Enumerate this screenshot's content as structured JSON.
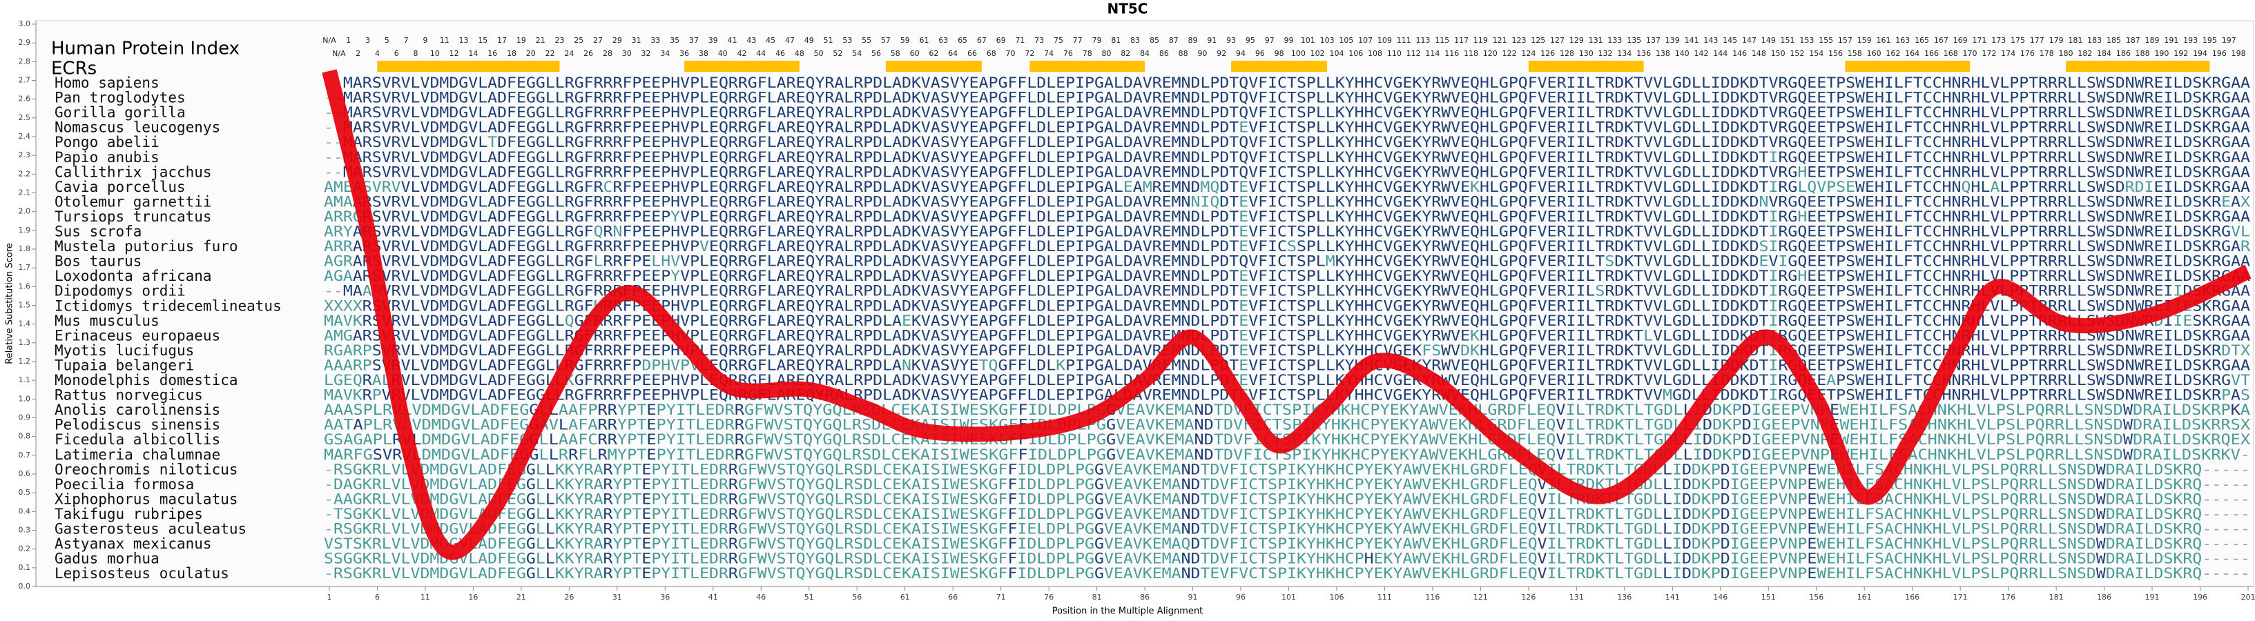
{
  "header": {
    "index_title": "Human Protein Index",
    "ecr_title": "ECRs"
  },
  "human_index": {
    "odd": [
      "N/A",
      1,
      3,
      5,
      7,
      9,
      11,
      13,
      15,
      17,
      19,
      21,
      23,
      25,
      27,
      29,
      31,
      33,
      35,
      37,
      39,
      41,
      43,
      45,
      47,
      49,
      51,
      53,
      55,
      57,
      59,
      61,
      63,
      65,
      67,
      69,
      71,
      73,
      75,
      77,
      79,
      81,
      83,
      85,
      87,
      89,
      91,
      93,
      95,
      97,
      99,
      101,
      103,
      105,
      107,
      109,
      111,
      113,
      115,
      117,
      119,
      121,
      123,
      125,
      127,
      129,
      131,
      133,
      135,
      137,
      139,
      141,
      143,
      145,
      147,
      149,
      151,
      153,
      155,
      157,
      159,
      161,
      163,
      165,
      167,
      169,
      171,
      173,
      175,
      177,
      179,
      181,
      183,
      185,
      187,
      189,
      191,
      193,
      195,
      197
    ],
    "even": [
      "N/A",
      2,
      4,
      6,
      8,
      10,
      12,
      14,
      16,
      18,
      20,
      22,
      24,
      26,
      28,
      30,
      32,
      34,
      36,
      38,
      40,
      42,
      44,
      46,
      48,
      50,
      52,
      54,
      56,
      58,
      60,
      62,
      64,
      66,
      68,
      70,
      72,
      74,
      76,
      78,
      80,
      82,
      84,
      86,
      88,
      90,
      92,
      94,
      96,
      98,
      100,
      102,
      104,
      106,
      108,
      110,
      112,
      114,
      116,
      118,
      120,
      122,
      124,
      126,
      128,
      130,
      132,
      134,
      136,
      138,
      140,
      142,
      144,
      146,
      148,
      150,
      152,
      154,
      156,
      158,
      160,
      162,
      164,
      166,
      168,
      170,
      172,
      174,
      176,
      178,
      180,
      182,
      184,
      186,
      188,
      190,
      192,
      194,
      196,
      198
    ]
  },
  "ecrs": [
    {
      "start": 6,
      "end": 25
    },
    {
      "start": 38,
      "end": 50
    },
    {
      "start": 59,
      "end": 69
    },
    {
      "start": 74,
      "end": 86
    },
    {
      "start": 95,
      "end": 105
    },
    {
      "start": 126,
      "end": 138
    },
    {
      "start": 159,
      "end": 172
    },
    {
      "start": 182,
      "end": 197
    }
  ],
  "alignment": {
    "species": [
      "Homo sapiens",
      "Pan troglodytes",
      "Gorilla gorilla",
      "Nomascus leucogenys",
      "Pongo abelii",
      "Papio anubis",
      "Callithrix jacchus",
      "Cavia porcellus",
      "Otolemur garnettii",
      "Tursiops truncatus",
      "Sus scrofa",
      "Mustela putorius furo",
      "Bos taurus",
      "Loxodonta africana",
      "Dipodomys ordii",
      "Ictidomys tridecemlineatus",
      "Mus musculus",
      "Erinaceus europaeus",
      "Myotis lucifugus",
      "Tupaia belangeri",
      "Monodelphis domestica",
      "Rattus norvegicus",
      "Anolis carolinensis",
      "Pelodiscus sinensis",
      "Ficedula albicollis",
      "Latimeria chalumnae",
      "Oreochromis niloticus",
      "Poecilia formosa",
      "Xiphophorus maculatus",
      "Takifugu rubripes",
      "Gasterosteus aculeatus",
      "Astyanax mexicanus",
      "Gadus morhua",
      "Lepisosteus oculatus"
    ],
    "sequences": [
      "--MARSVRVLVDMDGVLADFEGGLLRGFRRRFPEEPHVPLEQRRGFLAREQYRALRPDLADKVASVYEAPGFFLDLEPIPGALDAVREMNDLPDTQVFICTSPLLKYHHCVGEKYRWVEQHLGPQFVERIILTRDKTVVLGDLLIDDKDTVRGQEETPSWEHILFTCCHNRHLVLPPTRRRLLSWSDNWREILDSKRGAA",
      "--MARSVRVLVDMDGVLADFEGGLLRGFRRRFPEEPHVPLEQRRGFLAREQYRALRPDLADKVASVYEAPGFFLDLEPIPGALDAVREMNDLPDTQVFICTSPLLKYHHCVGEKYRWVEQHLGPQFVERIILTRDKTVVLGDLLIDDKDTVRGQEETPSWEHILFTCCHNRHLVLPPTRRRLLSWSDNWREILDSKRGAA",
      "--MARSVRVLVDMDGVLADFEGGLLRGFRRRFPEEPHVPLEQRRGFLAREQYRALRPDLADKVASVYEAPGFFLDLEPIPGALDAVREMNDLPDTQVFICTSPLLKYHHCVGEKYRWVEQHLGPQFVERIILTRDKTVVLGDLLIDDKDTVRGQEETPSWEHILFTCCHNRHLVLPPTRRRLLSWSDNWREILDSKRGAA",
      "--MARSVRVLVDMDGVLADFEGGLLRGFRRRFPEEPHVPLEQRRGFLAREQYRALRPDLADKVASVYEAPGFFLDLEPIPGALDAVREMNDLPDTEVFICTSPLLKYHHCVGEKYRWVEQHLGPQFVERIILTRDKTVVLGDLLIDDKDTVRGQEETPSWEHILFTCCHNRHLVLPPTRRRLLSWSDNWREILDSKRGAA",
      "--MARSVRVLVDMDGVLTDFEGGLLRGFRRRFPEEPHVPLEQRRGFLAREQYRALRPDLADKVASVYEAPGFFLDLEPIPGALDAVREMNDLPDTQVFICTSPLLKYHHCVGEKYRWVEQHLGPQFVERIILTRDKTVVLGDLLIDDKDTVRGQEETPSWEHILFTCCHNRHLVLPPTRRRLLSWSDNWREILDSKRGAA",
      "--MARSVRVLVDMDGVLADFEGGLLRGFRRRFPEEPHVPLEQRRGFLAREQYRALRPDLADKVASVYEAPGFFLDLEPIPGALDAVREMNDLPDTQVFICTSPLLKYHHCVGEKYRWVEQHLGPQFVERIILTRDKTVVLGDLLIDDKDTIRGQEETPSWEHILFTCCHNRHLVLPPTRRRLLSWSDNWREILDSKRGAA",
      "--MARSVRVLVDMDGVLADFEGGLLRGFRRRFPEEPHVPLEQRRGFLAREQYRALRPDLADKVASVYEAPGFFLDLEPIPGALDAVREMNDLPDTQVFICTSPLLKYHHCVGEKYRWVEQHLGPQFVERIILTRDKTVVLGDLLIDDKDTVRGHEETPSWEHILFTCCHNRHLVLPPTRRRLLSWSDNWREILDSKRGAA",
      "AMEASVRVVLVDMDGVLADFEGGLLRGFRCRFPEEPHVPLEQRRGFLAREQYRALRPDLADKVASVYEAPGFFLDLEPIPGALEAMREMNDMQDTEVFICTSPLLKYHHCVGEKYRWVEKHLGPQFVERIILTRDKTVVLGDLLIDDKDTIRGLQVPSEWEHILFTCCHNQHLALPPTRRRLLSWSDRDIEILDSKRGAA",
      "AMAARSVRVLVDMDGVLADFEGGLLRGFRRRFPEEPHVPLEQRRGFLAREQYRALRPDLADKVASVYEAPGFFLDLEPIPGALDAVREMNNIQDTEVFICTSPLLKYHHCVGEKYRWVEQHLGPQFVERIILTRDKTVVLGDLLIDDKDNVRGQEETPSWEHILFTCCHNRHLVLPPTRRRLLSWSDNWREILDSKREAX",
      "ARRGRSVRVLVDMDGVLADFEGGLLRGFRRRFPEEPYVPLEQRRGFLAREQYRALRPDLADKVASVYEAPGFFLDLEPIPGALDAVREMNDLPDTEVFICTSPLLKYHHCVGEKYRWVEQHLGPQFVERIILTRDKTVVLGDLLIDDKDTIRGHEETPSWEHILFTCCHNRHLVLPPTRRRLLSWSDNWREILDSKRGAA",
      "ARYARSVRVLVDMDGVLADFEGGLLRGFQRNFPEEPHVPLEQRRGFLAREQYRALRPDLADKVASVYEAPGFFLDLEPIPGALDAVREMNDLPDTEVFICTSPLLKYHHCVGEKYRWVEQHLGPQFVERIILTRDKTVVLGDLLIDDKDTIRGQEETPSWEHILFTCCHNRHLVLPPTRRRLLSWSDNWREILDSKRGVL",
      "ARRARSVRVLVDMDGVLADFEGGLLRGFRRRFPEEPHVPVEQRRGFLAREQYRALRPDLADKVASVYEAPGFFLDLEPIPGALDAVREMNDLPDTEVFICSSPLLKYHHCVGEKYRWVEQHLGPQFVERIILTRDKTVVLGDLLIDDKDSIRGQEETPSWEHILFTCCHNRHLVLPPTRRRLLSWSDNWREILDSKRGAR",
      "AGRARSVRVLVDMDGVLADFEGGLLRGFLRRFPELHVVPLEQRRGFLAREQYRALRPDLADKVASVYEAPGFFLDLEPIPGALDAVREMNDLPDTQVFICTSPLMKYHHCVGEKYRWVEQHLGPQFVERIILTSDKTVVLGDLLIDDKDEVIGQEETPSWEHILFTCCHNRHLVLPPTRRRLLSWSDNWREILDSKRGAA",
      "AGAARSVRVLVDMDGVLADFEGGLLRGFRRRFPEEPYVPLEQRRGFLAREQYRALRPDLADKVASVYEAPGFFLDLEPIPGALDAVREMNDLPDTEVFICTSPLLKYHHCVGEKYRWVEQHLGPQFVERIILTRDKTVVLGDLLIDDKDTIRGHEETPSWEHILFTCCHNRHLVLPPTRRRLLSWSDNWREILDSKRGAA",
      "--MAARVRVLVDMDGVLADFEGGLLRGFRRRFPEEPHVPLEQRRGFLAREQYRALRPDLADKVASVYEAPGFFLDLEPIPGALDAVREMNDLPDTEVFICTSPLLKYHHCVGEKYRWVEQHLGPQFVERIILSRDKTVVLGDLLIDDKDTIRGQEETPSWEHILFTCCHNRHLVLPPTRRRLLSWSDNWREIIDSKRGAA",
      "XXXXRSVRVLVDMDGVLADFEGGLLRGFHRRFPEEPHVPLEQRRGFLAREQYRALRPDLADKVASVYEAPGFFLDLEPIPGALDAVREMNDLPDTEVFICTSPLLKYHHCVGEKYRWVEQHLGPQFVERIILTRDKTVVLGDLLIDDKDTIRGQEETPSWEHILFTCCHNRHLVLPPTRRRLLSWSDNWREIIESKRGAA",
      "MAVKRSVRVLVDMDGVLADFEGGLLQGFRRRFPEEPHVPLEQRRGFLAREQYRALRPDLAEKVASVYEAPGFFLDLEPIPGALDAVREMNDLPDTEVFICTSPLLKYHHCVGEKYRWVEQHLGPQFVERIILTRDKTVVLGDLLIDDKDTIRGQEETPSWEHILFTCCHNRHLVLPPTRRRLLSWSDNWRDIIESKRGAA",
      "AMGARSVRVLVDMDGVLADFEGGLLRGFRRRFPEEPHVPLEQRRGFLAREQYRALRPDLADKVASVYEAPGFFLDLEPIPGALDAVREMNDLPDTEVFICTSPLLKYHHCVGEKYRWVEKHLGPQFVERIILTRDKTLVLGDLLIDDKDTIRGQEETPSWEHILFTCCHNRHLVLPPTRRRLLSWSDNWREILDSKRGAA",
      "RGARPSVRVLVDMDGVLADFEGGLLRGFRRRFPEEPHVPLEQRRGFLAREQYRALRPDLADKVASVYEAPGFFLDLEPIPGALDAVREMNDLPDTEVFICTSPLLKYHHCVGEKFSWVDKHLGPQFVERIILTRDKTVVLGDLLIDDKDTIRGQEETPSWEHILFTCCHNRHLVLPPTRRRLLSWSDNWREILDSKRDTX",
      "AAARPSVRVLVDMDGVLADFEGGLLRGFRRRFPDPHVPVLEQRRGFLAREQYRALRPDLANKVASVYETQGFFLDLKPIPGALDAVREMNDLPDTEVFICTSPLLKYHHCVGEKYRWVEQHLGPQFVERIILTRDKTVVLGDLLIDDKDTIRGQEETPSWEHILFTCCHNRHLVLPPTRRRLLSWSDNWREILDSKRGAA",
      "LGEQRALRVLVDMDGVLADFEGGLLKGFRRRFPEEPHVPLEQRRGFLAREQYRALRPDLADKVASVYEAPGFFLDLEPIPGALDAVREMNDLPDTEVFICTSPLLKYHHCVGEKYRWVEQHLGPQFVERIILTRDKTVVLGDLLIDDKDTIRGQEEAPSWEHILFTCCHNRHLVLPPTRRRLLSWSDNWREILDSKRGVT",
      "MAVKRPVRVLVDMDGVLADFEGGLLRGFRRRFPEEPHVPLEQRRGFLAREQYRALRPDLADKVASVYEAPGFFLDLEPIPGALDAVREMNDLPDTEVFICTSPLLKYHHCVGEKYRWVEQHLGPQFVERIILTRDKTVVMGDLLIDDKDTIRGQEETPSWEHILFTCCHNRHLVLPPTRRRLLSWSDNWREILDSKRPAS",
      "AAASPLRVLVDMDGVLADFEGGLLAAFPRRYPTEPYITLEDRRGFWVSTQYGQLRSDLCEKAISIWESKGFFIDLDPLPGGVEAVKEMANDTDVFICTSPIKYHKHCPYEKYAWVEKHLGRDFLEQVILTRDKTLTGDLLIDDKPDIGEEPVNPEWEHILFSACHNKHLVLPSLPQRRLLSNSDWDRAILDSKRPKA",
      "AATAPLRVLVDMDGVLADFEGGAVLAFARRYPTEPYITLEDRRGFWVSTQYGQLRSDLCEKAISIWESKGFFIDLDPLPGGVEAVKEMANDTDVFICTSPIKYHKHCPYEKYAWVEKHLGRDFLEQVILTRDKTLTGDLLIDDKPDIGEEPVNPEWEHILFSACHNKHLVLPSLPQRRLLSNSDWDRAILDSKRRSX",
      "GSAGAPLRVLDMDGVLADFEGGLLAAFCRRYPTEPYITLEDRRGFWVSTQYGQLRSDLCEKAISIWESKGFFIDLDPLPGGVEAVKEMANDTDVFICTSPIKYHKHCPYEKYAWVEKHLGRDFLEQVILTRDKTLTGDLLIDDKPDIGEEPVNPEWEHILFSACHNKHLVLPSLPQRRLLSNSDWDRAILDSKRQEX",
      "MARFGSVRVLDMDGVLADFEGGLLRRFLRMYPTEPYITLEDRRGFWVSTQYGQLRSDLCEKAISIWESKGFFIDLDPLPGGVEAVKEMANDTDVFICTSPIKYHKHCPYEKYAWVEKHLGRDFLEQVILTRDKTLTGDLLIDDKPDIGEEPVNPEWEHILFSACHNKHLVLPSLPQRRLLSNSDWDRAILDSKRKV-",
      "-RSGKRLVLVDMDGVLADFEGGLLKKYRARYPTEPYITLEDRRGFWVSTQYGQLRSDLCEKAISIWESKGFFIDLDPLPGGVEAVKEMANDTDVFICTSPIKYHKHCPYEKYAWVEKHLGRDFLEQVILTRDKTLTGDLLIDDKPDIGEEPVNPEWEHILFSACHNKHLVLPSLPQRRLLSNSDWDRAILDSKRQ-----",
      "-DAGKRLVLVDMDGVLADFEGGLLKKYRARYPTEPYITLEDRRGFWVSTQYGQLRSDLCEKAISIWESKGFFIDLDPLPGGVEAVKEMANDTDVFICTSPIKYHKHCPYEKYAWVEKHLGRDFLEQVILTRDKTLTGDLLIDDKPDIGEEPVNPEWEHILFSACHNKHLVLPSLPQRRLLSNSDWDRAILDSKRQ-----",
      "-AAGKRLVLVDMDGVLADFEGGLLKKYRARYPTEPYITLEDRRGFWVSTQYGQLRSDLCEKAISIWESKGFFIDLDPLPGGVEAVKEMANDTDVFICTSPIKYHKHCPYEKYAWVEKHLGRDFLEQVILTRDKTLTGDLLIDDKPDIGEEPVNPEWEHILFSACHNKHLVLPSLPQRRLLSNSDWDRAILDSKRQ-----",
      "-TSGKKLVLVDMDGVLADFEGGLLKKYRARYPTEPYITLEDRRGFWVSTQYGQLRSDLCEKAISIWESKGFFIDLDPLPGGVEAVKEMANDTDVFICTSPIKYHKHCPYEKYAWVEKHLGRDFLEQVILTRDKTLTGDLLIDDKPDIGEEPVNPEWEHILFSACHNKHLVLPSLPQRRLLSNSDWDRAILDSKRQ-----",
      "-RSGKRLVLVDMDGVLADFEGGLLKKYRARYPTEPYITLEDRRGFWVSTQYGQLRSDLCEKAISIWESKGFFIELDPLPGGVEAVKEMANDTDVFICTSPIKYHKHCPYEKYAWVEKHLGRDFLEQVILTRDKTLTGDLLIDDKPDIGEEPVNPEWEHILFSACHNKHLVLPSLPQRRLLSNSDWDRAILDSKRQ-----",
      "VSTSKRLVLVDMDGVLADFEGGLLKKYRARYPTEPYITLEDRRGFWVSTQYGQLRSDLCEKAISIWESKGFFIDLDPLPGGVEAVKEMAQDTDVFICTSPIKYHKHCPYEKYAWVEKHLGRDFLEQVILTRDKTLTGDLLIDDKPDIGEEPVNPEWEHILFSACHNKHLVLPSLPQRRLLSNSDWDRAILDSKRQ-----",
      "SSGGKRLVLVDMDGVLADFEGGLLKKYRARYPTEPYITLEDRRGFWVSTQYGQLRSDLCEKAISIWESKGFFIDLDPLPGGVEAVKEMANDTDVFICTSPIKYHKHCPHEKYAWVEKHLGRDFLEQVILTRDKTLTGDLLIDDKPDIGEEPVNPEWEHILFSACHNKHLVLPSLPQRRLLSNSDWDRAILDSKRQ-----",
      "-RSGKRLVLVDMDGVLADFEGGLLKKYRARYPTEPYITLEDRRGFWVSTQYGQLRSDLCEKAISIWESKGFFIDLDPLPGGVEAVKEMANDTEVFVCTSPIKYHKHCPYEKYAWVEKHLGRDFLEQVILTRDKTLTGDLLIDDKPDIGEEPVNPEWEHILFSACHNKHLVLPSLPQRRLLSNSDWDRAILDSKRQ-----"
    ]
  },
  "chart_data": {
    "type": "line",
    "title": "NT5C",
    "x_label": "Position in the Multiple Alignment",
    "y_label": "Relative Substitution Score",
    "x": [
      1,
      5,
      9,
      13,
      18,
      24,
      29,
      33,
      38,
      43,
      51,
      57,
      63,
      72,
      80,
      86,
      91,
      96,
      100,
      105,
      110,
      116,
      124,
      133,
      140,
      146,
      151,
      156,
      161,
      166,
      171,
      175,
      182,
      191,
      201
    ],
    "series": [
      {
        "color": "#e8000b",
        "values": [
          2.75,
          1.9,
          0.8,
          0.2,
          0.4,
          1.0,
          1.45,
          1.56,
          1.3,
          1.06,
          1.05,
          0.95,
          0.83,
          0.82,
          0.9,
          1.1,
          1.33,
          1.0,
          0.75,
          0.95,
          1.2,
          1.1,
          0.75,
          0.48,
          0.7,
          1.1,
          1.33,
          1.0,
          0.48,
          0.8,
          1.3,
          1.6,
          1.4,
          1.45,
          1.68
        ]
      }
    ],
    "xlim": [
      1,
      201
    ],
    "ylim": [
      0,
      3.0
    ],
    "xticks": [
      1,
      6,
      11,
      16,
      21,
      26,
      31,
      36,
      41,
      46,
      51,
      56,
      61,
      66,
      71,
      76,
      81,
      86,
      91,
      96,
      101,
      106,
      111,
      116,
      121,
      126,
      131,
      136,
      141,
      146,
      151,
      156,
      161,
      166,
      171,
      176,
      181,
      186,
      191,
      196,
      201
    ],
    "yticks": [
      {
        "value": 0,
        "label": "0.0"
      },
      0.1,
      0.2,
      0.3,
      0.4,
      0.5,
      0.6,
      0.7,
      0.8,
      0.9,
      {
        "value": 1,
        "label": "1.0"
      },
      1.1,
      1.2,
      1.3,
      1.4,
      1.5,
      1.6,
      1.7,
      1.8,
      1.9,
      {
        "value": 2,
        "label": "2.0"
      },
      2.1,
      2.2,
      2.3,
      2.4,
      2.5,
      2.6,
      2.7,
      2.8,
      2.9,
      {
        "value": 3,
        "label": "3.0"
      }
    ]
  }
}
